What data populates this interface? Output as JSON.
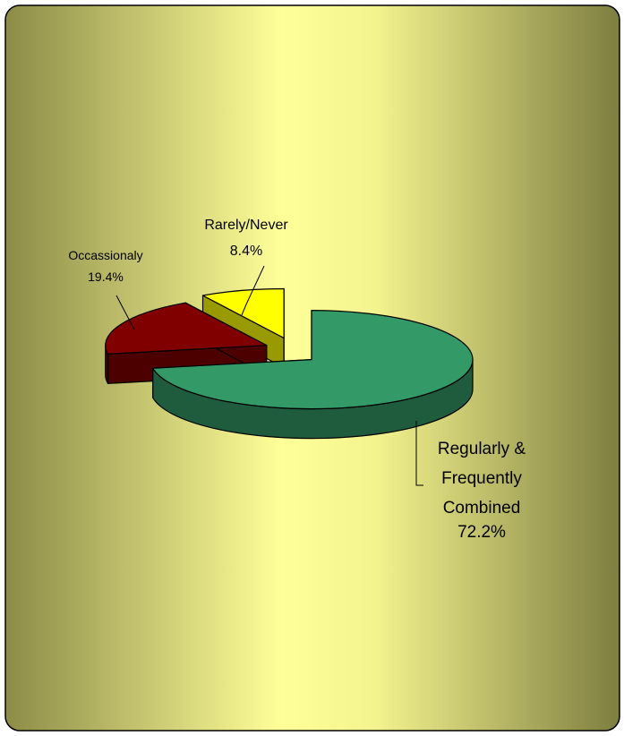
{
  "chart_data": {
    "type": "pie",
    "categories": [
      "Regularly &\nFrequently\nCombined",
      "Occassionaly",
      "Rarely/Never"
    ],
    "values": [
      72.2,
      19.4,
      8.4
    ],
    "value_labels": [
      "72.2%",
      "19.4%",
      "8.4%"
    ],
    "colors": [
      "#339966",
      "#800000",
      "#ffff00"
    ]
  }
}
